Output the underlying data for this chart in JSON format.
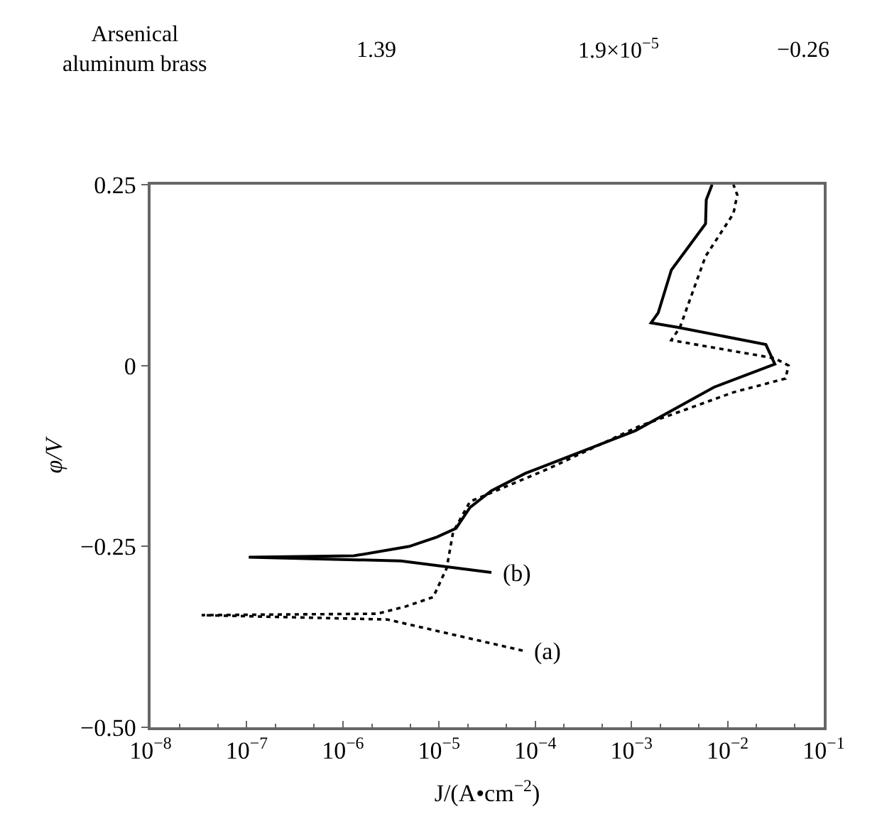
{
  "chart_data": {
    "type": "line",
    "log": "x",
    "xlabel": "J/(A•cm$^{−2}$)",
    "ylabel": "φ/V",
    "xlim": [
      1e-08,
      0.1
    ],
    "ylim": [
      -0.5,
      0.25
    ],
    "xticks": [
      {
        "value": 1e-08,
        "label": "10$^{−8}$"
      },
      {
        "value": 1e-07,
        "label": "10$^{−7}$"
      },
      {
        "value": 1e-06,
        "label": "10$^{−6}$"
      },
      {
        "value": 1e-05,
        "label": "10$^{−5}$"
      },
      {
        "value": 0.0001,
        "label": "10$^{−4}$"
      },
      {
        "value": 0.001,
        "label": "10$^{−3}$"
      },
      {
        "value": 0.01,
        "label": "10$^{−2}$"
      },
      {
        "value": 0.1,
        "label": "10$^{−1}$"
      }
    ],
    "yticks": [
      {
        "value": -0.5,
        "label": "−0.50"
      },
      {
        "value": -0.25,
        "label": "−0.25"
      },
      0,
      0.25
    ],
    "series": [
      {
        "color": "#000000",
        "line_style": "dotted",
        "x": [
          7.4e-05,
          2.9e-06,
          3.4e-08,
          2.3e-06,
          4.5e-06,
          8.7e-06,
          1.2e-05,
          1.4e-05,
          2.1e-05,
          0.000135,
          0.0012,
          0.0115,
          0.04,
          0.043,
          0.031,
          0.0026,
          0.0032,
          0.0059,
          0.0115,
          0.0126,
          0.0115
        ],
        "values": [
          -0.394,
          -0.351,
          -0.345,
          -0.343,
          -0.333,
          -0.32,
          -0.28,
          -0.23,
          -0.188,
          -0.143,
          -0.084,
          -0.037,
          -0.018,
          0.0,
          0.01,
          0.035,
          0.053,
          0.151,
          0.21,
          0.236,
          0.25
        ]
      },
      {
        "color": "#000000",
        "line_style": "solid",
        "x": [
          3.5e-05,
          4e-06,
          1.05e-07,
          1.3e-06,
          4.9e-06,
          9.5e-06,
          1.5e-05,
          2.1e-05,
          3.5e-05,
          7.9e-05,
          0.0011,
          0.0072,
          0.031,
          0.025,
          0.003,
          0.0016,
          0.0019,
          0.0026,
          0.0059,
          0.006,
          0.0069
        ],
        "values": [
          -0.286,
          -0.27,
          -0.265,
          -0.263,
          -0.25,
          -0.237,
          -0.225,
          -0.196,
          -0.173,
          -0.149,
          -0.09,
          -0.03,
          0.002,
          0.029,
          0.053,
          0.059,
          0.073,
          0.132,
          0.196,
          0.229,
          0.25
        ]
      }
    ],
    "annotations": [
      {
        "text": "(a)",
        "x": 7.4e-05,
        "y": -0.394
      },
      {
        "text": "(b)",
        "x": 3.5e-05,
        "y": -0.286
      },
      "Arsenical\naluminum brass",
      "1.39",
      "1.9×10$^{−5}$",
      "−0.26"
    ]
  }
}
